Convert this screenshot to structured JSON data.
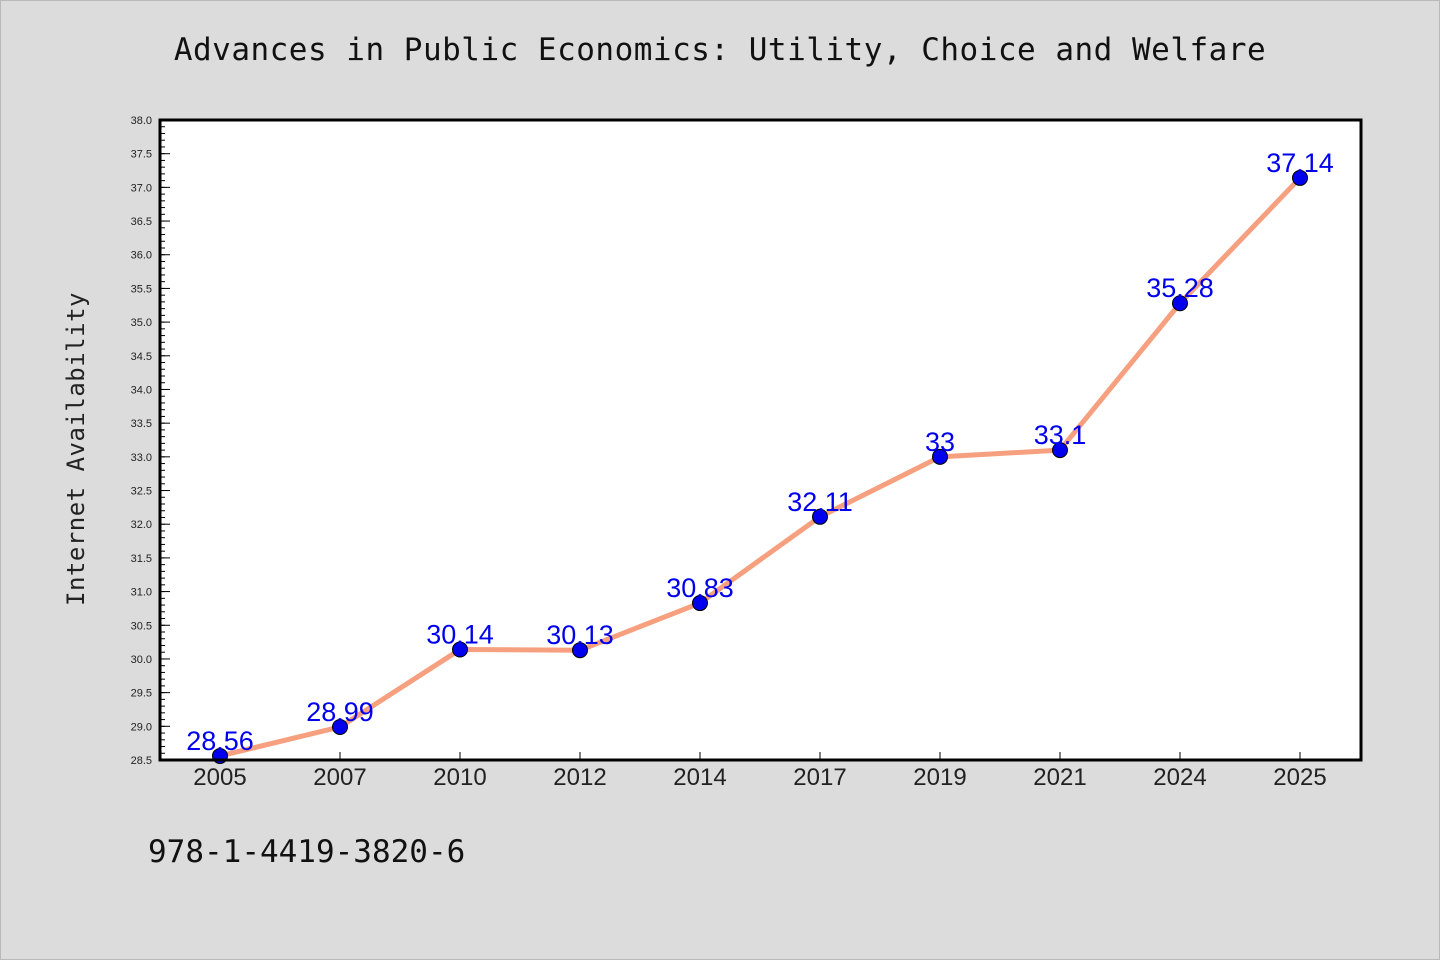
{
  "page": {
    "title": "Advances in Public Economics: Utility, Choice and Welfare",
    "footer_code": "978-1-4419-3820-6"
  },
  "colors": {
    "background": "#dcdcdc",
    "plot_background": "#ffffff",
    "line": "#f6a07f",
    "marker": "#0000ee",
    "data_label": "#0000ee"
  },
  "chart_data": {
    "type": "line",
    "title": "Advances in Public Economics: Utility, Choice and Welfare",
    "xlabel": "",
    "ylabel": "Internet Availability",
    "categories": [
      "2005",
      "2007",
      "2010",
      "2012",
      "2014",
      "2017",
      "2019",
      "2021",
      "2024",
      "2025"
    ],
    "series": [
      {
        "values": [
          28.56,
          28.99,
          30.14,
          30.13,
          30.83,
          32.11,
          33,
          33.1,
          35.28,
          37.14
        ],
        "data_labels": [
          "28.56",
          "28.99",
          "30.14",
          "30.13",
          "30.83",
          "32.11",
          "33",
          "33.1",
          "35.28",
          "37.14"
        ]
      }
    ],
    "ylim": [
      28.5,
      38.0
    ],
    "y_major_step": 0.5,
    "y_minor_step": 0.1,
    "y_tick_labels": [
      "28.5",
      "29.0",
      "29.5",
      "30.0",
      "30.5",
      "31.0",
      "31.5",
      "32.0",
      "32.5",
      "33.0",
      "33.5",
      "34.0",
      "34.5",
      "35.0",
      "35.5",
      "36.0",
      "36.5",
      "37.0",
      "37.5",
      "38.0"
    ],
    "grid": false,
    "legend": "none"
  }
}
